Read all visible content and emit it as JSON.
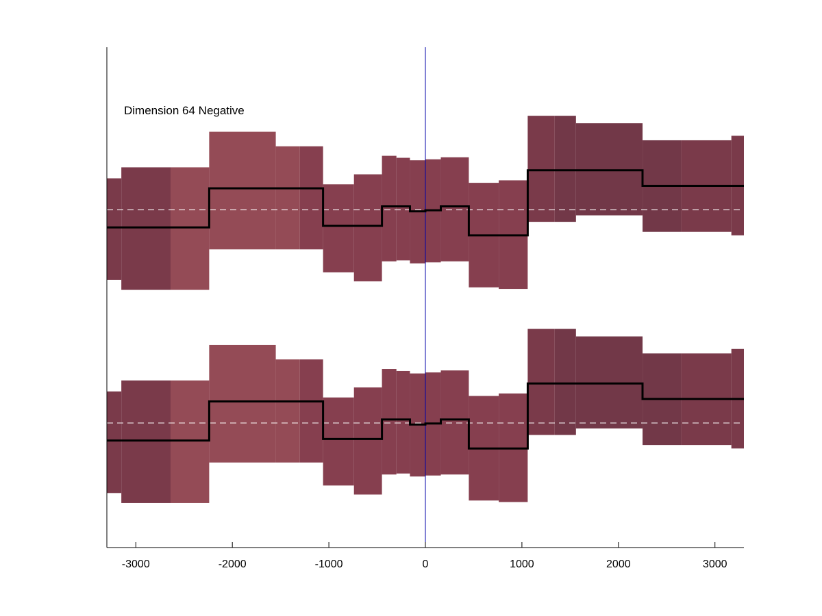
{
  "chart_data": {
    "type": "area",
    "title": "",
    "annotation": "Dimension 64 Negative",
    "xlabel": "",
    "ylabel": "",
    "xlim": [
      -3300,
      3300
    ],
    "ylim": [
      0,
      100
    ],
    "grid": false,
    "legend": "none",
    "x_ticks": [
      -3000,
      -2000,
      -1000,
      0,
      1000,
      2000,
      3000
    ],
    "x_tick_labels": [
      "-3000",
      "-2000",
      "-1000",
      "0",
      "1000",
      "2000",
      "3000"
    ],
    "reference_line_x": 0,
    "colors": {
      "line": "#000000",
      "baseline": "#ffffff",
      "vline": "#0000aa",
      "axis": "#000000",
      "band_dark": "#7a3a4a",
      "band_medium": "#863f4f",
      "band_light": "#944b56",
      "band_darkest": "#723848"
    },
    "series": [
      {
        "baseline": 67.5,
        "segments": [
          {
            "x0": -3300,
            "x1": -3150,
            "mean": 64.0,
            "lo": 53.5,
            "hi": 73.8,
            "shade": "band_dark"
          },
          {
            "x0": -3150,
            "x1": -2640,
            "mean": 64.0,
            "lo": 51.5,
            "hi": 76.0,
            "shade": "band_dark"
          },
          {
            "x0": -2640,
            "x1": -2240,
            "mean": 64.0,
            "lo": 51.5,
            "hi": 76.0,
            "shade": "band_light"
          },
          {
            "x0": -2240,
            "x1": -1550,
            "mean": 71.8,
            "lo": 59.6,
            "hi": 83.1,
            "shade": "band_light"
          },
          {
            "x0": -1550,
            "x1": -1300,
            "mean": 71.8,
            "lo": 59.6,
            "hi": 80.2,
            "shade": "band_light"
          },
          {
            "x0": -1300,
            "x1": -1060,
            "mean": 71.8,
            "lo": 59.6,
            "hi": 80.2,
            "shade": "band_medium"
          },
          {
            "x0": -1060,
            "x1": -740,
            "mean": 64.3,
            "lo": 55.0,
            "hi": 72.6,
            "shade": "band_medium"
          },
          {
            "x0": -740,
            "x1": -450,
            "mean": 64.3,
            "lo": 53.2,
            "hi": 74.6,
            "shade": "band_medium"
          },
          {
            "x0": -450,
            "x1": -300,
            "mean": 68.2,
            "lo": 57.2,
            "hi": 78.3,
            "shade": "band_medium"
          },
          {
            "x0": -300,
            "x1": -160,
            "mean": 68.2,
            "lo": 57.4,
            "hi": 77.9,
            "shade": "band_medium"
          },
          {
            "x0": -160,
            "x1": 0,
            "mean": 67.2,
            "lo": 56.8,
            "hi": 77.4,
            "shade": "band_medium"
          },
          {
            "x0": 0,
            "x1": 160,
            "mean": 67.4,
            "lo": 57.0,
            "hi": 77.6,
            "shade": "band_medium"
          },
          {
            "x0": 160,
            "x1": 450,
            "mean": 68.2,
            "lo": 57.2,
            "hi": 78.0,
            "shade": "band_medium"
          },
          {
            "x0": 450,
            "x1": 760,
            "mean": 62.4,
            "lo": 52.0,
            "hi": 72.9,
            "shade": "band_medium"
          },
          {
            "x0": 760,
            "x1": 1060,
            "mean": 62.4,
            "lo": 51.7,
            "hi": 73.4,
            "shade": "band_medium"
          },
          {
            "x0": 1060,
            "x1": 1340,
            "mean": 75.4,
            "lo": 65.1,
            "hi": 86.3,
            "shade": "band_dark"
          },
          {
            "x0": 1340,
            "x1": 1560,
            "mean": 75.4,
            "lo": 65.1,
            "hi": 86.3,
            "shade": "band_darkest"
          },
          {
            "x0": 1560,
            "x1": 2250,
            "mean": 75.4,
            "lo": 66.4,
            "hi": 84.8,
            "shade": "band_darkest"
          },
          {
            "x0": 2250,
            "x1": 2650,
            "mean": 72.3,
            "lo": 63.1,
            "hi": 81.4,
            "shade": "band_darkest"
          },
          {
            "x0": 2650,
            "x1": 3170,
            "mean": 72.3,
            "lo": 63.1,
            "hi": 81.4,
            "shade": "band_dark"
          },
          {
            "x0": 3170,
            "x1": 3300,
            "mean": 72.3,
            "lo": 62.4,
            "hi": 82.3,
            "shade": "band_dark"
          }
        ]
      },
      {
        "baseline": 24.9,
        "segments": [
          {
            "x0": -3300,
            "x1": -3150,
            "mean": 21.4,
            "lo": 10.9,
            "hi": 31.2,
            "shade": "band_dark"
          },
          {
            "x0": -3150,
            "x1": -2640,
            "mean": 21.4,
            "lo": 8.9,
            "hi": 33.4,
            "shade": "band_dark"
          },
          {
            "x0": -2640,
            "x1": -2240,
            "mean": 21.4,
            "lo": 8.9,
            "hi": 33.4,
            "shade": "band_light"
          },
          {
            "x0": -2240,
            "x1": -1550,
            "mean": 29.2,
            "lo": 17.0,
            "hi": 40.5,
            "shade": "band_light"
          },
          {
            "x0": -1550,
            "x1": -1300,
            "mean": 29.2,
            "lo": 17.0,
            "hi": 37.6,
            "shade": "band_light"
          },
          {
            "x0": -1300,
            "x1": -1060,
            "mean": 29.2,
            "lo": 17.0,
            "hi": 37.6,
            "shade": "band_medium"
          },
          {
            "x0": -1060,
            "x1": -740,
            "mean": 21.7,
            "lo": 12.4,
            "hi": 30.0,
            "shade": "band_medium"
          },
          {
            "x0": -740,
            "x1": -450,
            "mean": 21.7,
            "lo": 10.6,
            "hi": 32.0,
            "shade": "band_medium"
          },
          {
            "x0": -450,
            "x1": -300,
            "mean": 25.6,
            "lo": 14.6,
            "hi": 35.7,
            "shade": "band_medium"
          },
          {
            "x0": -300,
            "x1": -160,
            "mean": 25.6,
            "lo": 14.8,
            "hi": 35.3,
            "shade": "band_medium"
          },
          {
            "x0": -160,
            "x1": 0,
            "mean": 24.6,
            "lo": 14.2,
            "hi": 34.8,
            "shade": "band_medium"
          },
          {
            "x0": 0,
            "x1": 160,
            "mean": 24.8,
            "lo": 14.4,
            "hi": 35.0,
            "shade": "band_medium"
          },
          {
            "x0": 160,
            "x1": 450,
            "mean": 25.6,
            "lo": 14.6,
            "hi": 35.4,
            "shade": "band_medium"
          },
          {
            "x0": 450,
            "x1": 760,
            "mean": 19.8,
            "lo": 9.4,
            "hi": 30.3,
            "shade": "band_medium"
          },
          {
            "x0": 760,
            "x1": 1060,
            "mean": 19.8,
            "lo": 9.1,
            "hi": 30.8,
            "shade": "band_medium"
          },
          {
            "x0": 1060,
            "x1": 1340,
            "mean": 32.8,
            "lo": 22.5,
            "hi": 43.7,
            "shade": "band_dark"
          },
          {
            "x0": 1340,
            "x1": 1560,
            "mean": 32.8,
            "lo": 22.5,
            "hi": 43.7,
            "shade": "band_darkest"
          },
          {
            "x0": 1560,
            "x1": 2250,
            "mean": 32.8,
            "lo": 23.8,
            "hi": 42.2,
            "shade": "band_darkest"
          },
          {
            "x0": 2250,
            "x1": 2650,
            "mean": 29.7,
            "lo": 20.5,
            "hi": 38.8,
            "shade": "band_darkest"
          },
          {
            "x0": 2650,
            "x1": 3170,
            "mean": 29.7,
            "lo": 20.5,
            "hi": 38.8,
            "shade": "band_dark"
          },
          {
            "x0": 3170,
            "x1": 3300,
            "mean": 29.7,
            "lo": 19.8,
            "hi": 39.7,
            "shade": "band_dark"
          }
        ]
      }
    ]
  }
}
